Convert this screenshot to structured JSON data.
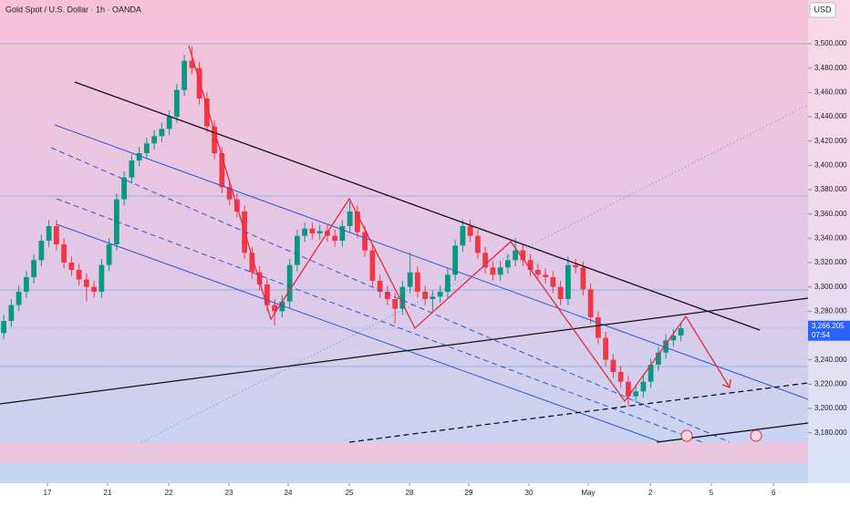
{
  "chart_data": {
    "type": "candlestick",
    "title": "Gold Spot / U.S. Dollar · 1h · OANDA",
    "currency": "USD",
    "up_color": "#089981",
    "down_color": "#f23645",
    "xlim": [
      0,
      320
    ],
    "xticks": [
      {
        "value": 18.9,
        "label": "17"
      },
      {
        "value": 42.9,
        "label": "21"
      },
      {
        "value": 67.3,
        "label": "22"
      },
      {
        "value": 91.3,
        "label": "23"
      },
      {
        "value": 114.9,
        "label": "24"
      },
      {
        "value": 139.3,
        "label": "25"
      },
      {
        "value": 163.3,
        "label": "28"
      },
      {
        "value": 186.9,
        "label": "29"
      },
      {
        "value": 210.9,
        "label": "30"
      },
      {
        "value": 234.5,
        "label": "May"
      },
      {
        "value": 259.3,
        "label": "2"
      },
      {
        "value": 283.6,
        "label": "5"
      },
      {
        "value": 308.4,
        "label": "6"
      }
    ],
    "ylim": [
      3146,
      3536
    ],
    "yticks": [
      {
        "value": 3180,
        "label": "3,180.000"
      },
      {
        "value": 3200,
        "label": "3,200.000"
      },
      {
        "value": 3220,
        "label": "3,220.000"
      },
      {
        "value": 3240,
        "label": "3,240.000"
      },
      {
        "value": 3280,
        "label": "3,280.000"
      },
      {
        "value": 3300,
        "label": "3,300.000"
      },
      {
        "value": 3320,
        "label": "3,320.000"
      },
      {
        "value": 3340,
        "label": "3,340.000"
      },
      {
        "value": 3360,
        "label": "3,360.000"
      },
      {
        "value": 3380,
        "label": "3,380.000"
      },
      {
        "value": 3400,
        "label": "3,400.000"
      },
      {
        "value": 3420,
        "label": "3,420.000"
      },
      {
        "value": 3440,
        "label": "3,440.000"
      },
      {
        "value": 3460,
        "label": "3,460.000"
      },
      {
        "value": 3480,
        "label": "3,480.000"
      },
      {
        "value": 3500,
        "label": "3,500.000"
      }
    ],
    "last_price": {
      "value": 3266.205,
      "label": "3,266.205"
    },
    "countdown": "07:54",
    "x": [
      1.5,
      4.5,
      7.5,
      10.5,
      13.5,
      16.5,
      19.5,
      22.5,
      25.5,
      28.5,
      31.5,
      34.5,
      37.5,
      40.5,
      43.5,
      46.5,
      49.5,
      52.5,
      55.5,
      58.5,
      61.5,
      64.5,
      67.5,
      70.5,
      73.5,
      76.5,
      79.5,
      82.5,
      85.5,
      88.5,
      91.5,
      94.5,
      97.5,
      100.5,
      103.5,
      106.5,
      109.5,
      112.5,
      115.5,
      118.5,
      121.5,
      124.5,
      127.5,
      130.5,
      133.5,
      136.5,
      139.5,
      142.5,
      145.5,
      148.5,
      151.5,
      154.5,
      157.5,
      160.5,
      163.5,
      166.5,
      169.5,
      172.5,
      175.5,
      178.5,
      181.5,
      184.5,
      187.5,
      190.5,
      193.5,
      196.5,
      199.5,
      202.5,
      205.5,
      208.5,
      211.5,
      214.5,
      217.5,
      220.5,
      223.5,
      226.5,
      229.5,
      232.5,
      235.5,
      238.5,
      241.5,
      244.5,
      247.5,
      250.5,
      253.5,
      256.5,
      259.5,
      262.5,
      265.5,
      268.5,
      271.5
    ],
    "candles": [
      [
        3262,
        3277,
        3257,
        3272
      ],
      [
        3272,
        3290,
        3267,
        3285
      ],
      [
        3285,
        3301,
        3280,
        3296
      ],
      [
        3296,
        3313,
        3291,
        3308
      ],
      [
        3308,
        3327,
        3303,
        3322
      ],
      [
        3322,
        3343,
        3317,
        3338
      ],
      [
        3338,
        3355,
        3333,
        3350
      ],
      [
        3350,
        3355,
        3330,
        3335
      ],
      [
        3335,
        3340,
        3315,
        3320
      ],
      [
        3320,
        3325,
        3309,
        3314
      ],
      [
        3314,
        3319,
        3301,
        3306
      ],
      [
        3306,
        3311,
        3288,
        3300
      ],
      [
        3300,
        3305,
        3291,
        3296
      ],
      [
        3296,
        3323,
        3291,
        3318
      ],
      [
        3318,
        3340,
        3313,
        3335
      ],
      [
        3335,
        3377,
        3330,
        3372
      ],
      [
        3372,
        3395,
        3367,
        3390
      ],
      [
        3390,
        3409,
        3385,
        3404
      ],
      [
        3404,
        3415,
        3399,
        3410
      ],
      [
        3410,
        3423,
        3405,
        3418
      ],
      [
        3418,
        3429,
        3413,
        3424
      ],
      [
        3424,
        3435,
        3419,
        3430
      ],
      [
        3430,
        3445,
        3425,
        3440
      ],
      [
        3440,
        3467,
        3435,
        3462
      ],
      [
        3462,
        3491,
        3457,
        3486
      ],
      [
        3486,
        3498,
        3475,
        3480
      ],
      [
        3480,
        3485,
        3450,
        3455
      ],
      [
        3455,
        3460,
        3427,
        3432
      ],
      [
        3432,
        3437,
        3405,
        3410
      ],
      [
        3410,
        3415,
        3377,
        3382
      ],
      [
        3382,
        3387,
        3367,
        3372
      ],
      [
        3372,
        3377,
        3357,
        3362
      ],
      [
        3362,
        3367,
        3323,
        3328
      ],
      [
        3328,
        3333,
        3307,
        3312
      ],
      [
        3312,
        3317,
        3297,
        3302
      ],
      [
        3302,
        3307,
        3280,
        3285
      ],
      [
        3285,
        3290,
        3268,
        3280
      ],
      [
        3280,
        3293,
        3275,
        3288
      ],
      [
        3288,
        3323,
        3283,
        3318
      ],
      [
        3318,
        3347,
        3313,
        3342
      ],
      [
        3342,
        3353,
        3337,
        3348
      ],
      [
        3348,
        3353,
        3339,
        3344
      ],
      [
        3344,
        3351,
        3339,
        3346
      ],
      [
        3346,
        3351,
        3337,
        3342
      ],
      [
        3342,
        3347,
        3333,
        3338
      ],
      [
        3338,
        3355,
        3333,
        3350
      ],
      [
        3350,
        3370,
        3345,
        3362
      ],
      [
        3362,
        3367,
        3340,
        3345
      ],
      [
        3345,
        3350,
        3325,
        3330
      ],
      [
        3330,
        3335,
        3300,
        3305
      ],
      [
        3305,
        3310,
        3291,
        3296
      ],
      [
        3296,
        3301,
        3285,
        3290
      ],
      [
        3290,
        3295,
        3270,
        3282
      ],
      [
        3282,
        3305,
        3277,
        3300
      ],
      [
        3300,
        3328,
        3295,
        3312
      ],
      [
        3312,
        3317,
        3291,
        3296
      ],
      [
        3296,
        3301,
        3285,
        3290
      ],
      [
        3290,
        3297,
        3280,
        3292
      ],
      [
        3292,
        3301,
        3287,
        3296
      ],
      [
        3296,
        3315,
        3291,
        3310
      ],
      [
        3310,
        3339,
        3305,
        3334
      ],
      [
        3334,
        3355,
        3329,
        3350
      ],
      [
        3350,
        3355,
        3337,
        3342
      ],
      [
        3342,
        3347,
        3323,
        3328
      ],
      [
        3328,
        3333,
        3311,
        3316
      ],
      [
        3316,
        3321,
        3305,
        3310
      ],
      [
        3310,
        3321,
        3305,
        3316
      ],
      [
        3316,
        3327,
        3311,
        3322
      ],
      [
        3322,
        3340,
        3317,
        3330
      ],
      [
        3330,
        3335,
        3317,
        3322
      ],
      [
        3322,
        3327,
        3309,
        3314
      ],
      [
        3314,
        3319,
        3305,
        3310
      ],
      [
        3310,
        3315,
        3303,
        3308
      ],
      [
        3308,
        3313,
        3295,
        3300
      ],
      [
        3300,
        3305,
        3285,
        3290
      ],
      [
        3290,
        3325,
        3285,
        3318
      ],
      [
        3318,
        3323,
        3311,
        3316
      ],
      [
        3316,
        3321,
        3293,
        3298
      ],
      [
        3298,
        3303,
        3270,
        3275
      ],
      [
        3275,
        3280,
        3253,
        3258
      ],
      [
        3258,
        3263,
        3235,
        3240
      ],
      [
        3240,
        3245,
        3225,
        3230
      ],
      [
        3230,
        3235,
        3217,
        3222
      ],
      [
        3222,
        3227,
        3202,
        3210
      ],
      [
        3210,
        3219,
        3205,
        3214
      ],
      [
        3214,
        3227,
        3209,
        3222
      ],
      [
        3222,
        3241,
        3217,
        3236
      ],
      [
        3236,
        3251,
        3231,
        3246
      ],
      [
        3246,
        3261,
        3241,
        3256
      ],
      [
        3256,
        3265,
        3251,
        3260
      ],
      [
        3260,
        3270,
        3255,
        3266
      ]
    ]
  }
}
